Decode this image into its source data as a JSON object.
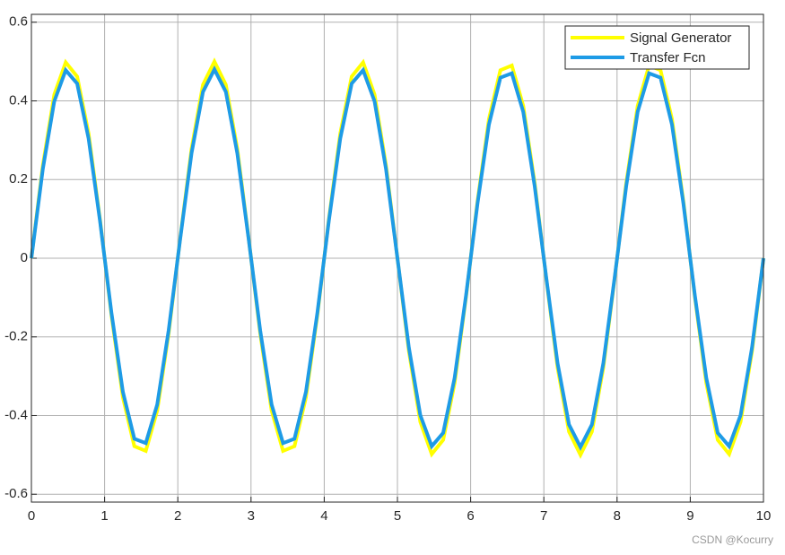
{
  "chart_data": {
    "type": "line",
    "x": [
      0,
      0.15625,
      0.3125,
      0.46875,
      0.625,
      0.78125,
      0.9375,
      1.09375,
      1.25,
      1.40625,
      1.5625,
      1.71875,
      1.875,
      2.03125,
      2.1875,
      2.34375,
      2.5,
      2.65625,
      2.8125,
      2.96875,
      3.125,
      3.28125,
      3.4375,
      3.59375,
      3.75,
      3.90625,
      4.0625,
      4.21875,
      4.375,
      4.53125,
      4.6875,
      4.84375,
      5,
      5.15625,
      5.3125,
      5.46875,
      5.625,
      5.78125,
      5.9375,
      6.09375,
      6.25,
      6.40625,
      6.5625,
      6.71875,
      6.875,
      7.03125,
      7.1875,
      7.34375,
      7.5,
      7.65625,
      7.8125,
      7.96875,
      8.125,
      8.28125,
      8.4375,
      8.59375,
      8.75,
      8.90625,
      9.0625,
      9.21875,
      9.375,
      9.53125,
      9.6875,
      9.84375,
      10
    ],
    "series": [
      {
        "name": "Signal Generator",
        "color": "#ffff00",
        "values": [
          0,
          0.236,
          0.416,
          0.498,
          0.462,
          0.317,
          0.098,
          -0.145,
          -0.354,
          -0.478,
          -0.49,
          -0.387,
          -0.191,
          0.049,
          0.278,
          0.441,
          0.5,
          0.441,
          0.278,
          0.049,
          -0.191,
          -0.387,
          -0.49,
          -0.478,
          -0.354,
          -0.145,
          0.098,
          0.317,
          0.462,
          0.498,
          0.416,
          0.236,
          0,
          -0.236,
          -0.416,
          -0.498,
          -0.462,
          -0.317,
          -0.098,
          0.145,
          0.354,
          0.478,
          0.49,
          0.387,
          0.191,
          -0.049,
          -0.278,
          -0.441,
          -0.5,
          -0.441,
          -0.278,
          -0.049,
          0.191,
          0.387,
          0.49,
          0.478,
          0.354,
          0.145,
          -0.098,
          -0.317,
          -0.462,
          -0.498,
          -0.416,
          -0.236,
          0
        ]
      },
      {
        "name": "Transfer Fcn",
        "color": "#1e9be6",
        "values": [
          0,
          0.227,
          0.399,
          0.478,
          0.444,
          0.304,
          0.094,
          -0.139,
          -0.34,
          -0.459,
          -0.47,
          -0.372,
          -0.183,
          0.047,
          0.267,
          0.423,
          0.48,
          0.423,
          0.267,
          0.047,
          -0.183,
          -0.372,
          -0.47,
          -0.459,
          -0.34,
          -0.139,
          0.094,
          0.304,
          0.444,
          0.478,
          0.399,
          0.227,
          0,
          -0.227,
          -0.399,
          -0.478,
          -0.444,
          -0.304,
          -0.094,
          0.139,
          0.34,
          0.459,
          0.47,
          0.372,
          0.183,
          -0.047,
          -0.267,
          -0.423,
          -0.48,
          -0.423,
          -0.267,
          -0.047,
          0.183,
          0.372,
          0.47,
          0.459,
          0.34,
          0.139,
          -0.094,
          -0.304,
          -0.444,
          -0.478,
          -0.399,
          -0.227,
          0
        ]
      }
    ],
    "xlim": [
      0,
      10
    ],
    "xticks": [
      0,
      1,
      2,
      3,
      4,
      5,
      6,
      7,
      8,
      9,
      10
    ],
    "ylim": [
      -0.62,
      0.62
    ],
    "yticks": [
      -0.6,
      -0.4,
      -0.2,
      0,
      0.2,
      0.4,
      0.6
    ],
    "grid": true,
    "legend": "northeast",
    "watermark": "CSDN @Kocurry"
  }
}
